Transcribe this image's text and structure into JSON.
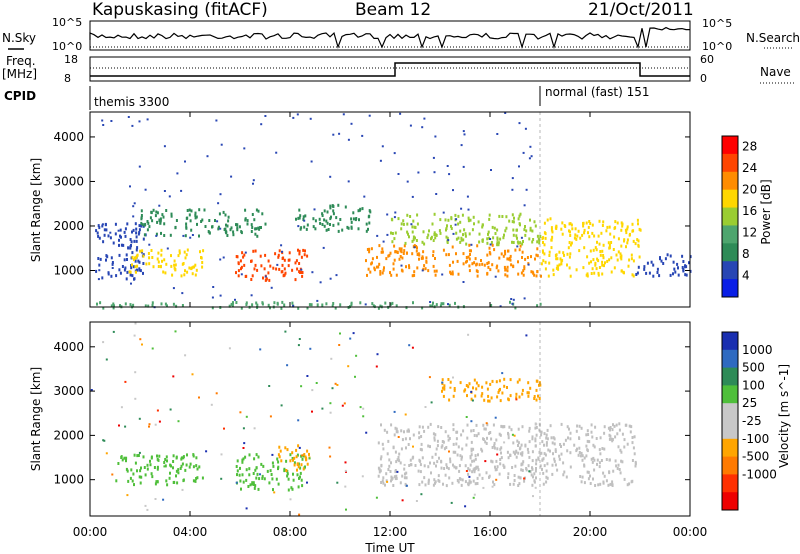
{
  "header": {
    "station": "Kapuskasing (fitACF)",
    "beam": "Beam 12",
    "date": "21/Oct/2011"
  },
  "strip": {
    "nsky_label": "N.Sky",
    "nsearch_label": "N.Search",
    "nave_label": "Nave",
    "freq_label_line1": "Freq.",
    "freq_label_line2": "[MHz]",
    "cpid_label": "CPID",
    "nsky_ticks": [
      "10^5",
      "10^0"
    ],
    "nsearch_ticks": [
      "10^5",
      "10^0"
    ],
    "freq_ticks": [
      "18",
      "8"
    ],
    "nave_ticks": [
      "60",
      "0"
    ],
    "cpid_programs": [
      {
        "name": "themis 3300",
        "start_hour": 0,
        "end_hour": 18.0
      },
      {
        "name": "normal (fast) 151",
        "start_hour": 18.0,
        "end_hour": 24
      }
    ]
  },
  "colors": {
    "power": [
      "#0a1fe6",
      "#2846b4",
      "#2e8b57",
      "#4ea56e",
      "#9acd32",
      "#ffd700",
      "#ff8c00",
      "#ff4500",
      "#ff0000"
    ],
    "velocity": [
      "#1a2fb0",
      "#2f6ac0",
      "#2e8b57",
      "#4fbf3a",
      "#c8c8c8",
      "#c8c8c8",
      "#ffa500",
      "#ff7a00",
      "#ff3000",
      "#ee0000"
    ],
    "ground_scatter": "#c0c0c0"
  },
  "chart_data": [
    {
      "type": "heatmap",
      "name": "power",
      "title": "",
      "xlabel": "Time UT",
      "ylabel": "Slant Range [km]",
      "x_range_hours": [
        0,
        24
      ],
      "x_ticks": [
        "00:00",
        "04:00",
        "08:00",
        "12:00",
        "16:00",
        "20:00",
        "00:00"
      ],
      "ylim_km": [
        180,
        4560
      ],
      "y_ticks": [
        1000,
        2000,
        3000,
        4000
      ],
      "colorbar": {
        "label": "Power [dB]",
        "ticks": [
          4,
          8,
          12,
          16,
          20,
          24,
          28
        ],
        "range": [
          0,
          30
        ]
      },
      "regions_hours_km": [
        {
          "t": [
            0.2,
            2.2
          ],
          "r": [
            800,
            2100
          ],
          "level": 6
        },
        {
          "t": [
            1.5,
            4.5
          ],
          "r": [
            900,
            1500
          ],
          "level": 18
        },
        {
          "t": [
            2.0,
            7.0
          ],
          "r": [
            1800,
            2400
          ],
          "level": 8
        },
        {
          "t": [
            5.8,
            8.7
          ],
          "r": [
            800,
            1500
          ],
          "level": 26
        },
        {
          "t": [
            8.2,
            11.2
          ],
          "r": [
            1900,
            2500
          ],
          "level": 8
        },
        {
          "t": [
            11.0,
            18.0
          ],
          "r": [
            900,
            1600
          ],
          "level": 20
        },
        {
          "t": [
            12.0,
            18.0
          ],
          "r": [
            1600,
            2300
          ],
          "level": 14
        },
        {
          "t": [
            18.0,
            22.0
          ],
          "r": [
            900,
            2200
          ],
          "level": 18
        },
        {
          "t": [
            21.8,
            24.0
          ],
          "r": [
            900,
            1400
          ],
          "level": 6
        },
        {
          "t": [
            0.2,
            18.0
          ],
          "r": [
            180,
            320
          ],
          "level": 10
        }
      ]
    },
    {
      "type": "heatmap",
      "name": "velocity",
      "title": "",
      "xlabel": "Time UT",
      "ylabel": "Slant Range [km]",
      "x_range_hours": [
        0,
        24
      ],
      "x_ticks": [
        "00:00",
        "04:00",
        "08:00",
        "12:00",
        "16:00",
        "20:00",
        "00:00"
      ],
      "ylim_km": [
        180,
        4560
      ],
      "y_ticks": [
        1000,
        2000,
        3000,
        4000
      ],
      "colorbar": {
        "label": "Velocity [m s^-1]",
        "ticks": [
          "1000",
          "500",
          "100",
          "25",
          "-25",
          "-100",
          "-500",
          "-1000"
        ]
      },
      "regions_hours_km": [
        {
          "t": [
            1.0,
            4.5
          ],
          "r": [
            900,
            1600
          ],
          "level": "100"
        },
        {
          "t": [
            5.8,
            8.6
          ],
          "r": [
            800,
            1600
          ],
          "level": "100"
        },
        {
          "t": [
            7.5,
            8.8
          ],
          "r": [
            1200,
            1800
          ],
          "level": "-100"
        },
        {
          "t": [
            11.5,
            21.8
          ],
          "r": [
            900,
            2300
          ],
          "level": "ground"
        },
        {
          "t": [
            14.0,
            18.0
          ],
          "r": [
            2800,
            3300
          ],
          "level": "-100"
        }
      ]
    }
  ]
}
